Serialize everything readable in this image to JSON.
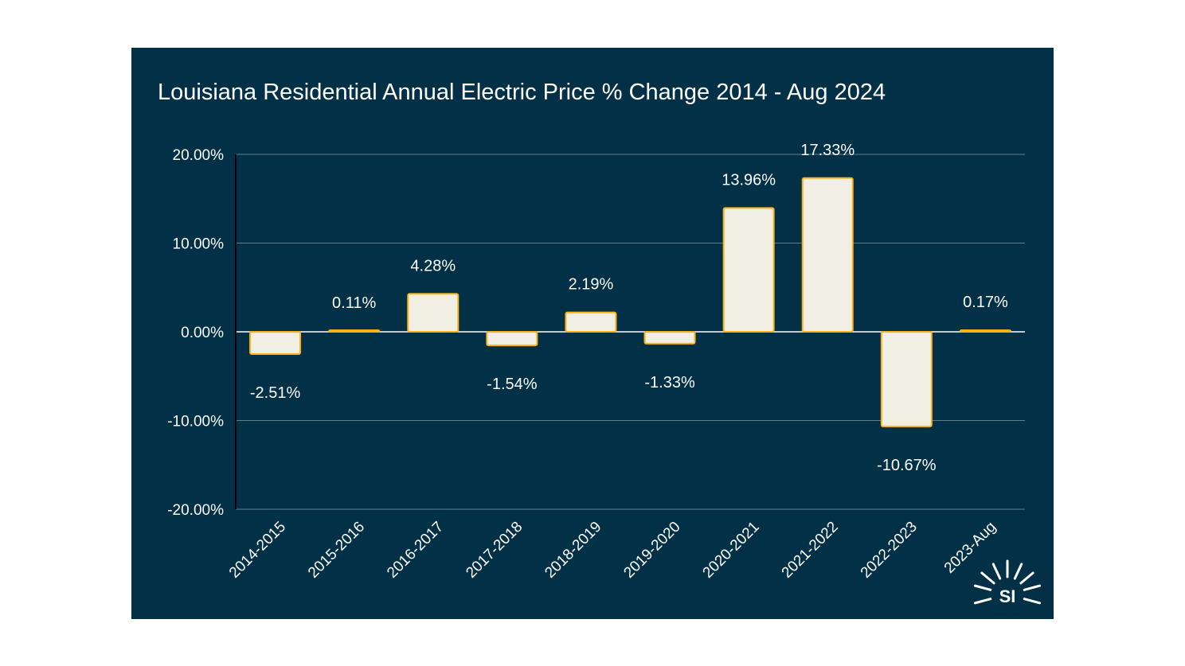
{
  "chart_data": {
    "type": "bar",
    "title": "Louisiana Residential Annual Electric Price % Change 2014 - Aug 2024",
    "xlabel": "",
    "ylabel": "",
    "ylim": [
      -20,
      20
    ],
    "yticks": [
      20,
      10,
      0,
      -10,
      -20
    ],
    "ytick_labels": [
      "20.00%",
      "10.00%",
      "0.00%",
      "-10.00%",
      "-20.00%"
    ],
    "categories": [
      "2014-2015",
      "2015-2016",
      "2016-2017",
      "2017-2018",
      "2018-2019",
      "2019-2020",
      "2020-2021",
      "2021-2022",
      "2022-2023",
      "2023-Aug"
    ],
    "values": [
      -2.51,
      0.11,
      4.28,
      -1.54,
      2.19,
      -1.33,
      13.96,
      17.33,
      -10.67,
      0.17
    ],
    "data_labels": [
      "-2.51%",
      "0.11%",
      "4.28%",
      "-1.54%",
      "2.19%",
      "-1.33%",
      "13.96%",
      "17.33%",
      "-10.67%",
      "0.17%"
    ],
    "grid": true,
    "legend": "none",
    "colors": {
      "background": "#023047",
      "bar_fill": "#f1efe3",
      "bar_stroke": "#fbb117",
      "grid": "#5f7f8e",
      "text": "#ffffff"
    }
  },
  "logo": {
    "text": "SI"
  }
}
